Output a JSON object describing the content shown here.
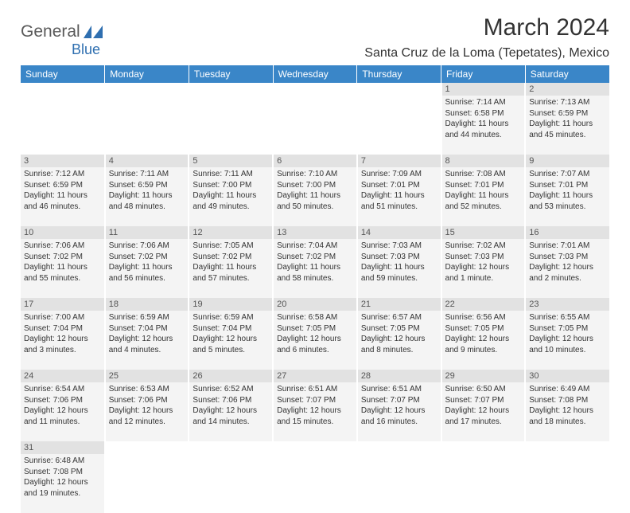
{
  "logo": {
    "text1": "General",
    "text2": "Blue"
  },
  "title": "March 2024",
  "location": "Santa Cruz de la Loma (Tepetates), Mexico",
  "colors": {
    "header_bg": "#3a86c8",
    "header_fg": "#ffffff",
    "daynum_bg": "#e2e2e2",
    "detail_bg": "#f4f4f4",
    "text": "#333333",
    "logo_gray": "#5a5a5a",
    "logo_blue": "#2f6fb0"
  },
  "weekdays": [
    "Sunday",
    "Monday",
    "Tuesday",
    "Wednesday",
    "Thursday",
    "Friday",
    "Saturday"
  ],
  "weeks": [
    [
      null,
      null,
      null,
      null,
      null,
      {
        "n": "1",
        "sr": "Sunrise: 7:14 AM",
        "ss": "Sunset: 6:58 PM",
        "d1": "Daylight: 11 hours",
        "d2": "and 44 minutes."
      },
      {
        "n": "2",
        "sr": "Sunrise: 7:13 AM",
        "ss": "Sunset: 6:59 PM",
        "d1": "Daylight: 11 hours",
        "d2": "and 45 minutes."
      }
    ],
    [
      {
        "n": "3",
        "sr": "Sunrise: 7:12 AM",
        "ss": "Sunset: 6:59 PM",
        "d1": "Daylight: 11 hours",
        "d2": "and 46 minutes."
      },
      {
        "n": "4",
        "sr": "Sunrise: 7:11 AM",
        "ss": "Sunset: 6:59 PM",
        "d1": "Daylight: 11 hours",
        "d2": "and 48 minutes."
      },
      {
        "n": "5",
        "sr": "Sunrise: 7:11 AM",
        "ss": "Sunset: 7:00 PM",
        "d1": "Daylight: 11 hours",
        "d2": "and 49 minutes."
      },
      {
        "n": "6",
        "sr": "Sunrise: 7:10 AM",
        "ss": "Sunset: 7:00 PM",
        "d1": "Daylight: 11 hours",
        "d2": "and 50 minutes."
      },
      {
        "n": "7",
        "sr": "Sunrise: 7:09 AM",
        "ss": "Sunset: 7:01 PM",
        "d1": "Daylight: 11 hours",
        "d2": "and 51 minutes."
      },
      {
        "n": "8",
        "sr": "Sunrise: 7:08 AM",
        "ss": "Sunset: 7:01 PM",
        "d1": "Daylight: 11 hours",
        "d2": "and 52 minutes."
      },
      {
        "n": "9",
        "sr": "Sunrise: 7:07 AM",
        "ss": "Sunset: 7:01 PM",
        "d1": "Daylight: 11 hours",
        "d2": "and 53 minutes."
      }
    ],
    [
      {
        "n": "10",
        "sr": "Sunrise: 7:06 AM",
        "ss": "Sunset: 7:02 PM",
        "d1": "Daylight: 11 hours",
        "d2": "and 55 minutes."
      },
      {
        "n": "11",
        "sr": "Sunrise: 7:06 AM",
        "ss": "Sunset: 7:02 PM",
        "d1": "Daylight: 11 hours",
        "d2": "and 56 minutes."
      },
      {
        "n": "12",
        "sr": "Sunrise: 7:05 AM",
        "ss": "Sunset: 7:02 PM",
        "d1": "Daylight: 11 hours",
        "d2": "and 57 minutes."
      },
      {
        "n": "13",
        "sr": "Sunrise: 7:04 AM",
        "ss": "Sunset: 7:02 PM",
        "d1": "Daylight: 11 hours",
        "d2": "and 58 minutes."
      },
      {
        "n": "14",
        "sr": "Sunrise: 7:03 AM",
        "ss": "Sunset: 7:03 PM",
        "d1": "Daylight: 11 hours",
        "d2": "and 59 minutes."
      },
      {
        "n": "15",
        "sr": "Sunrise: 7:02 AM",
        "ss": "Sunset: 7:03 PM",
        "d1": "Daylight: 12 hours",
        "d2": "and 1 minute."
      },
      {
        "n": "16",
        "sr": "Sunrise: 7:01 AM",
        "ss": "Sunset: 7:03 PM",
        "d1": "Daylight: 12 hours",
        "d2": "and 2 minutes."
      }
    ],
    [
      {
        "n": "17",
        "sr": "Sunrise: 7:00 AM",
        "ss": "Sunset: 7:04 PM",
        "d1": "Daylight: 12 hours",
        "d2": "and 3 minutes."
      },
      {
        "n": "18",
        "sr": "Sunrise: 6:59 AM",
        "ss": "Sunset: 7:04 PM",
        "d1": "Daylight: 12 hours",
        "d2": "and 4 minutes."
      },
      {
        "n": "19",
        "sr": "Sunrise: 6:59 AM",
        "ss": "Sunset: 7:04 PM",
        "d1": "Daylight: 12 hours",
        "d2": "and 5 minutes."
      },
      {
        "n": "20",
        "sr": "Sunrise: 6:58 AM",
        "ss": "Sunset: 7:05 PM",
        "d1": "Daylight: 12 hours",
        "d2": "and 6 minutes."
      },
      {
        "n": "21",
        "sr": "Sunrise: 6:57 AM",
        "ss": "Sunset: 7:05 PM",
        "d1": "Daylight: 12 hours",
        "d2": "and 8 minutes."
      },
      {
        "n": "22",
        "sr": "Sunrise: 6:56 AM",
        "ss": "Sunset: 7:05 PM",
        "d1": "Daylight: 12 hours",
        "d2": "and 9 minutes."
      },
      {
        "n": "23",
        "sr": "Sunrise: 6:55 AM",
        "ss": "Sunset: 7:05 PM",
        "d1": "Daylight: 12 hours",
        "d2": "and 10 minutes."
      }
    ],
    [
      {
        "n": "24",
        "sr": "Sunrise: 6:54 AM",
        "ss": "Sunset: 7:06 PM",
        "d1": "Daylight: 12 hours",
        "d2": "and 11 minutes."
      },
      {
        "n": "25",
        "sr": "Sunrise: 6:53 AM",
        "ss": "Sunset: 7:06 PM",
        "d1": "Daylight: 12 hours",
        "d2": "and 12 minutes."
      },
      {
        "n": "26",
        "sr": "Sunrise: 6:52 AM",
        "ss": "Sunset: 7:06 PM",
        "d1": "Daylight: 12 hours",
        "d2": "and 14 minutes."
      },
      {
        "n": "27",
        "sr": "Sunrise: 6:51 AM",
        "ss": "Sunset: 7:07 PM",
        "d1": "Daylight: 12 hours",
        "d2": "and 15 minutes."
      },
      {
        "n": "28",
        "sr": "Sunrise: 6:51 AM",
        "ss": "Sunset: 7:07 PM",
        "d1": "Daylight: 12 hours",
        "d2": "and 16 minutes."
      },
      {
        "n": "29",
        "sr": "Sunrise: 6:50 AM",
        "ss": "Sunset: 7:07 PM",
        "d1": "Daylight: 12 hours",
        "d2": "and 17 minutes."
      },
      {
        "n": "30",
        "sr": "Sunrise: 6:49 AM",
        "ss": "Sunset: 7:08 PM",
        "d1": "Daylight: 12 hours",
        "d2": "and 18 minutes."
      }
    ],
    [
      {
        "n": "31",
        "sr": "Sunrise: 6:48 AM",
        "ss": "Sunset: 7:08 PM",
        "d1": "Daylight: 12 hours",
        "d2": "and 19 minutes."
      },
      null,
      null,
      null,
      null,
      null,
      null
    ]
  ]
}
